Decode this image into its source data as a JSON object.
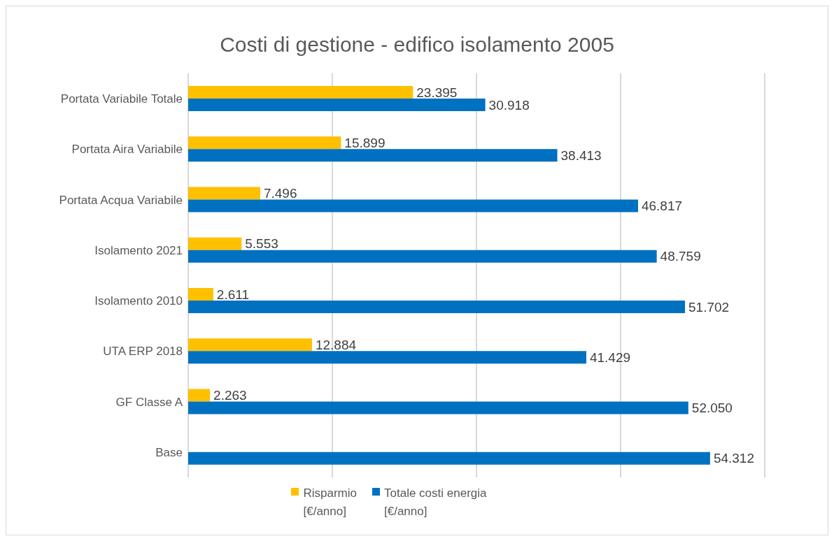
{
  "chart_data": {
    "type": "bar",
    "orientation": "horizontal",
    "title": "Costi di gestione - edifico isolamento  2005",
    "categories": [
      "Portata Variabile Totale",
      "Portata Aira Variabile",
      "Portata Acqua Variabile",
      "Isolamento 2021",
      "Isolamento 2010",
      "UTA ERP 2018",
      "GF Classe A",
      "Base"
    ],
    "series": [
      {
        "name": "Risparmio [€/anno]",
        "color": "#ffc000",
        "values": [
          23395,
          15899,
          7496,
          5553,
          2611,
          12884,
          2263,
          null
        ],
        "value_labels": [
          "23.395",
          "15.899",
          "7.496",
          "5.553",
          "2.611",
          "12.884",
          "2.263",
          null
        ]
      },
      {
        "name": "Totale costi energia [€/anno]",
        "color": "#0070c0",
        "values": [
          30918,
          38413,
          46817,
          48759,
          51702,
          41429,
          52050,
          54312
        ],
        "value_labels": [
          "30.918",
          "38.413",
          "46.817",
          "48.759",
          "51.702",
          "41.429",
          "52.050",
          "54.312"
        ]
      }
    ],
    "tick_labels": "y",
    "grid": "x",
    "legend": "bottom"
  }
}
